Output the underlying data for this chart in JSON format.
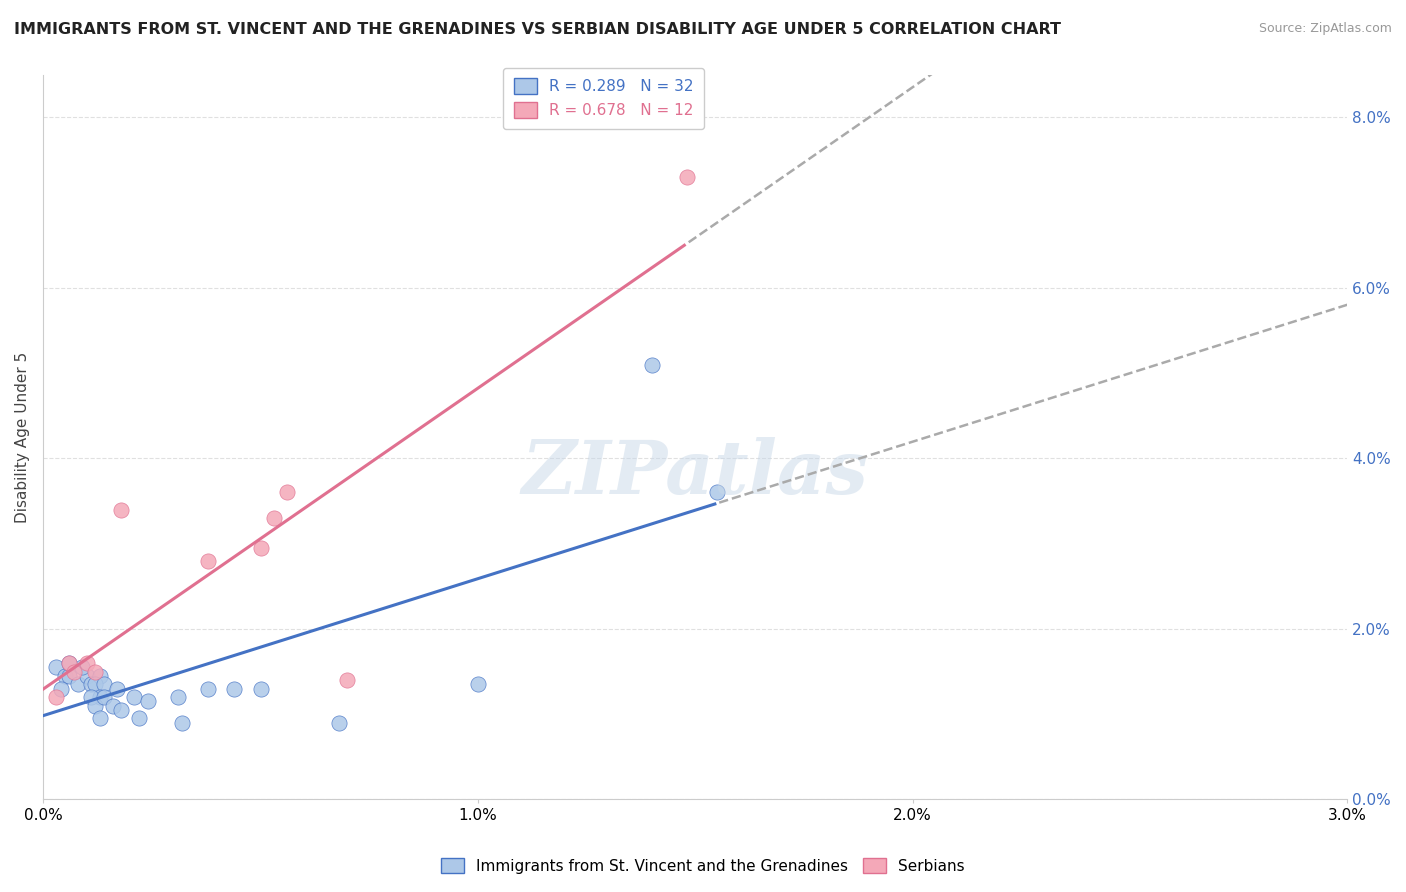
{
  "title": "IMMIGRANTS FROM ST. VINCENT AND THE GRENADINES VS SERBIAN DISABILITY AGE UNDER 5 CORRELATION CHART",
  "source": "Source: ZipAtlas.com",
  "ylabel": "Disability Age Under 5",
  "xmin": 0.0,
  "xmax": 0.03,
  "ymin": 0.0,
  "ymax": 0.085,
  "ytick_vals": [
    0.0,
    0.02,
    0.04,
    0.06,
    0.08
  ],
  "xtick_vals": [
    0.0,
    0.01,
    0.02,
    0.03
  ],
  "legend_label1": "Immigrants from St. Vincent and the Grenadines",
  "legend_label2": "Serbians",
  "R1": 0.289,
  "N1": 32,
  "R2": 0.678,
  "N2": 12,
  "color1": "#adc8e8",
  "color2": "#f4a8b8",
  "line_color1": "#4472c4",
  "line_color2": "#e07090",
  "dot_size": 120,
  "blue_scatter": [
    [
      0.0003,
      0.0155
    ],
    [
      0.0005,
      0.0145
    ],
    [
      0.0006,
      0.0145
    ],
    [
      0.0004,
      0.013
    ],
    [
      0.0006,
      0.016
    ],
    [
      0.0008,
      0.0135
    ],
    [
      0.001,
      0.0145
    ],
    [
      0.0009,
      0.0155
    ],
    [
      0.0011,
      0.0135
    ],
    [
      0.0013,
      0.0145
    ],
    [
      0.0012,
      0.0135
    ],
    [
      0.0014,
      0.0135
    ],
    [
      0.0013,
      0.012
    ],
    [
      0.0011,
      0.012
    ],
    [
      0.0012,
      0.011
    ],
    [
      0.0014,
      0.012
    ],
    [
      0.0016,
      0.011
    ],
    [
      0.0018,
      0.0105
    ],
    [
      0.0017,
      0.013
    ],
    [
      0.0021,
      0.012
    ],
    [
      0.0024,
      0.0115
    ],
    [
      0.0013,
      0.0095
    ],
    [
      0.0022,
      0.0095
    ],
    [
      0.0031,
      0.012
    ],
    [
      0.0038,
      0.013
    ],
    [
      0.0044,
      0.013
    ],
    [
      0.005,
      0.013
    ],
    [
      0.0032,
      0.009
    ],
    [
      0.0068,
      0.009
    ],
    [
      0.01,
      0.0135
    ],
    [
      0.014,
      0.051
    ],
    [
      0.0155,
      0.036
    ]
  ],
  "pink_scatter": [
    [
      0.0003,
      0.012
    ],
    [
      0.0006,
      0.016
    ],
    [
      0.0007,
      0.015
    ],
    [
      0.001,
      0.016
    ],
    [
      0.0012,
      0.015
    ],
    [
      0.0018,
      0.034
    ],
    [
      0.0038,
      0.028
    ],
    [
      0.005,
      0.0295
    ],
    [
      0.0053,
      0.033
    ],
    [
      0.0056,
      0.036
    ],
    [
      0.007,
      0.014
    ],
    [
      0.0148,
      0.073
    ]
  ],
  "watermark": "ZIPatlas",
  "grid_color": "#e0e0e0",
  "dash_color": "#aaaaaa"
}
